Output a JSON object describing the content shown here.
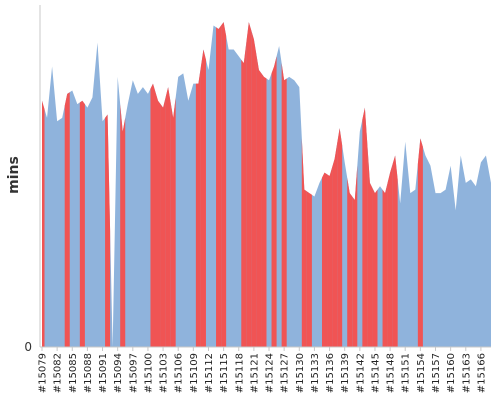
{
  "chart_data": {
    "type": "area",
    "ylabel": "mins",
    "y_ticks": [
      "0"
    ],
    "ylim": [
      0,
      100
    ],
    "grid": false,
    "colors": {
      "base": "#8fb3dc",
      "highlight": "#f05454"
    },
    "x_tick_labels": [
      "#15079",
      "#15082",
      "#15085",
      "#15088",
      "#15091",
      "#15094",
      "#15097",
      "#15100",
      "#15103",
      "#15106",
      "#15109",
      "#15112",
      "#15115",
      "#15118",
      "#15121",
      "#15124",
      "#15127",
      "#15130",
      "#15133",
      "#15136",
      "#15139",
      "#15142",
      "#15145",
      "#15148",
      "#15151",
      "#15154",
      "#15157",
      "#15160",
      "#15163",
      "#15166"
    ],
    "x": [
      15079,
      15080,
      15081,
      15082,
      15083,
      15084,
      15085,
      15086,
      15087,
      15088,
      15089,
      15090,
      15091,
      15092,
      15093,
      15094,
      15095,
      15096,
      15097,
      15098,
      15099,
      15100,
      15101,
      15102,
      15103,
      15104,
      15105,
      15106,
      15107,
      15108,
      15109,
      15110,
      15111,
      15112,
      15113,
      15114,
      15115,
      15116,
      15117,
      15118,
      15119,
      15120,
      15121,
      15122,
      15123,
      15124,
      15125,
      15126,
      15127,
      15128,
      15129,
      15130,
      15131,
      15132,
      15133,
      15134,
      15135,
      15136,
      15137,
      15138,
      15139,
      15140,
      15141,
      15142,
      15143,
      15144,
      15145,
      15146,
      15147,
      15148,
      15149,
      15150,
      15151,
      15152,
      15153,
      15154,
      15155,
      15156,
      15157,
      15158,
      15159,
      15160,
      15161,
      15162,
      15163,
      15164,
      15165,
      15166,
      15167,
      15168
    ],
    "values": [
      72,
      67,
      82,
      66,
      67,
      74,
      75,
      71,
      72,
      70,
      73,
      89,
      66,
      68,
      0,
      79,
      63,
      71,
      78,
      74,
      76,
      74,
      77,
      72,
      70,
      76,
      67,
      79,
      80,
      72,
      77,
      77,
      87,
      81,
      94,
      93,
      95,
      87,
      87,
      85,
      83,
      95,
      90,
      81,
      79,
      78,
      82,
      88,
      78,
      79,
      78,
      76,
      46,
      45,
      44,
      48,
      51,
      50,
      55,
      64,
      54,
      45,
      43,
      63,
      70,
      48,
      45,
      47,
      45,
      51,
      56,
      42,
      60,
      45,
      46,
      61,
      56,
      53,
      45,
      45,
      46,
      53,
      40,
      56,
      48,
      49,
      47,
      54,
      56,
      48
    ],
    "highlight_indices": [
      0,
      5,
      8,
      13,
      16,
      22,
      23,
      24,
      25,
      26,
      31,
      32,
      35,
      36,
      40,
      41,
      42,
      43,
      44,
      46,
      48,
      52,
      53,
      56,
      57,
      58,
      59,
      61,
      62,
      64,
      65,
      66,
      68,
      69,
      70,
      75
    ]
  }
}
